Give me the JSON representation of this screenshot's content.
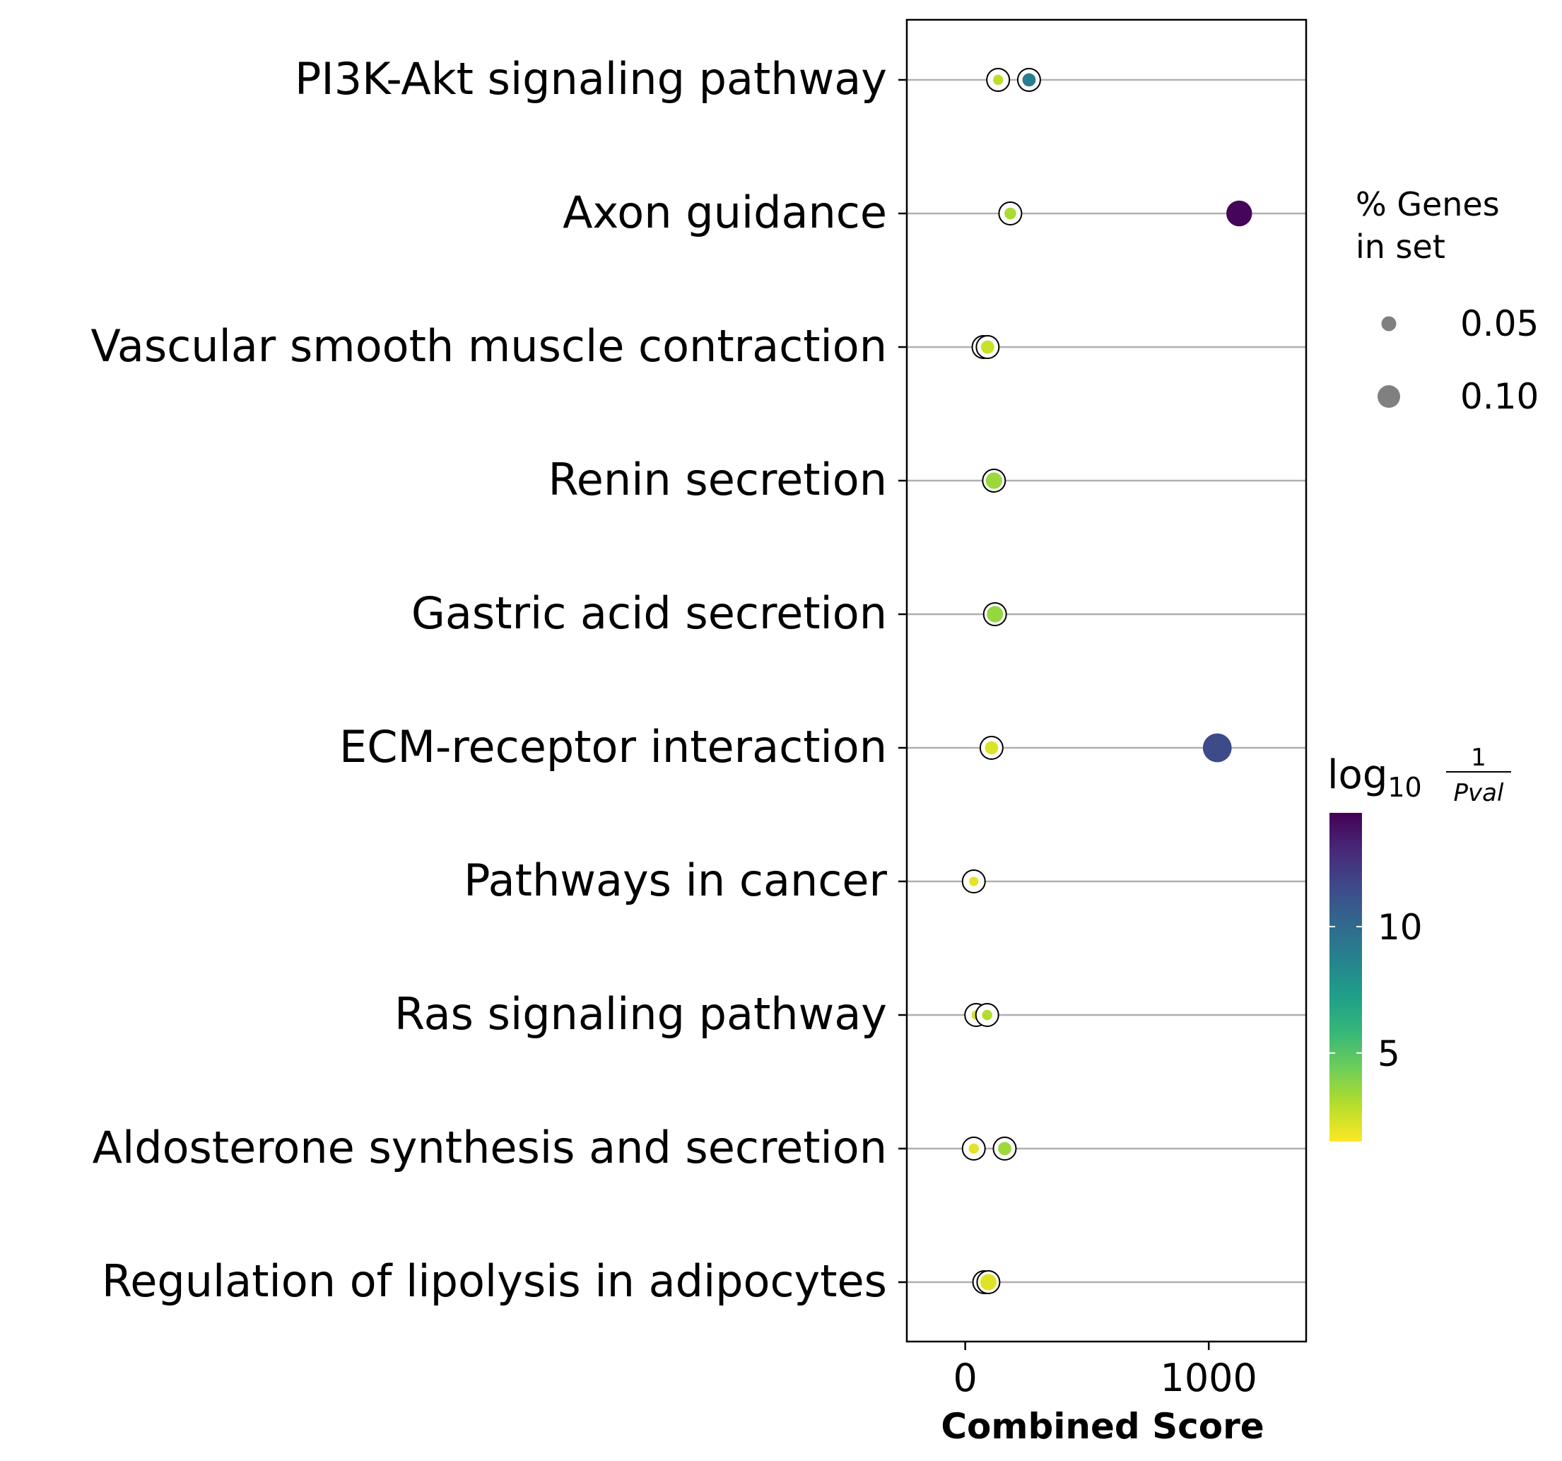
{
  "chart_data": {
    "type": "scatter",
    "categories": [
      "PI3K-Akt signaling pathway",
      "Axon guidance",
      "Vascular smooth muscle contraction",
      "Renin secretion",
      "Gastric acid secretion",
      "ECM-receptor interaction",
      "Pathways in cancer",
      "Ras signaling pathway",
      "Aldosterone synthesis and secretion",
      "Regulation of lipolysis in adipocytes"
    ],
    "xlabel": "Combined Score",
    "xlim": [
      -240,
      1400
    ],
    "xticks": [
      0,
      1000
    ],
    "points": [
      {
        "category": "PI3K-Akt signaling pathway",
        "x": 135,
        "pct": 0.02,
        "log10_inv_pval": 2.8
      },
      {
        "category": "PI3K-Akt signaling pathway",
        "x": 262,
        "pct": 0.04,
        "log10_inv_pval": 9.0
      },
      {
        "category": "Axon guidance",
        "x": 185,
        "pct": 0.03,
        "log10_inv_pval": 3.2
      },
      {
        "category": "Axon guidance",
        "x": 1125,
        "pct": 0.12,
        "log10_inv_pval": 14.3
      },
      {
        "category": "Vascular smooth muscle contraction",
        "x": 75,
        "pct": 0.03,
        "log10_inv_pval": 3.3
      },
      {
        "category": "Vascular smooth muscle contraction",
        "x": 92,
        "pct": 0.04,
        "log10_inv_pval": 2.5
      },
      {
        "category": "Renin secretion",
        "x": 118,
        "pct": 0.06,
        "log10_inv_pval": 3.5
      },
      {
        "category": "Gastric acid secretion",
        "x": 122,
        "pct": 0.06,
        "log10_inv_pval": 3.6
      },
      {
        "category": "ECM-receptor interaction",
        "x": 108,
        "pct": 0.04,
        "log10_inv_pval": 2.2
      },
      {
        "category": "ECM-receptor interaction",
        "x": 1035,
        "pct": 0.14,
        "log10_inv_pval": 11.5
      },
      {
        "category": "Pathways in cancer",
        "x": 35,
        "pct": 0.015,
        "log10_inv_pval": 2.0
      },
      {
        "category": "Ras signaling pathway",
        "x": 45,
        "pct": 0.015,
        "log10_inv_pval": 2.3
      },
      {
        "category": "Ras signaling pathway",
        "x": 90,
        "pct": 0.02,
        "log10_inv_pval": 3.0
      },
      {
        "category": "Aldosterone synthesis and secretion",
        "x": 35,
        "pct": 0.02,
        "log10_inv_pval": 2.0
      },
      {
        "category": "Aldosterone synthesis and secretion",
        "x": 162,
        "pct": 0.04,
        "log10_inv_pval": 3.4
      },
      {
        "category": "Regulation of lipolysis in adipocytes",
        "x": 78,
        "pct": 0.05,
        "log10_inv_pval": 1.8
      },
      {
        "category": "Regulation of lipolysis in adipocytes",
        "x": 95,
        "pct": 0.06,
        "log10_inv_pval": 2.1
      }
    ],
    "size_legend": {
      "title": [
        "% Genes",
        "in set"
      ],
      "entries": [
        {
          "label": "0.05",
          "value": 0.05
        },
        {
          "label": "0.10",
          "value": 0.1
        }
      ]
    },
    "colorbar": {
      "title_main": "log",
      "title_sub": "10",
      "title_num": "1",
      "title_den": "Pval",
      "range": [
        1.5,
        14.5
      ],
      "ticks": [
        {
          "label": "5",
          "value": 5
        },
        {
          "label": "10",
          "value": 10
        }
      ],
      "colormap": "viridis_r",
      "stops": [
        "#fde725",
        "#b5de2b",
        "#6ece58",
        "#35b779",
        "#1f9e89",
        "#26828e",
        "#31688e",
        "#3e4989",
        "#482878",
        "#440154"
      ]
    },
    "grid": "horizontal",
    "legend_position": "right"
  }
}
